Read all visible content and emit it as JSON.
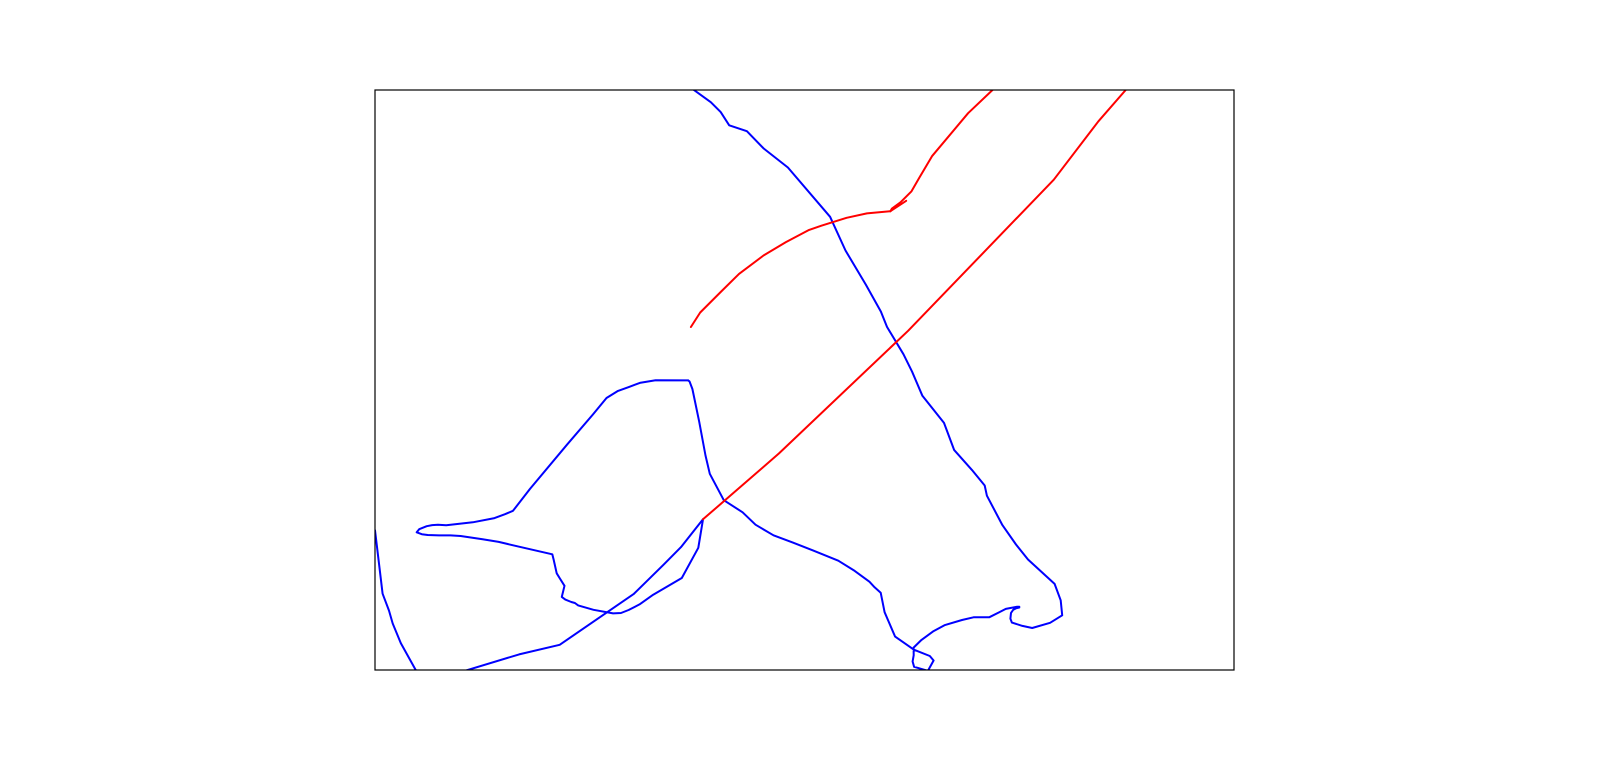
{
  "chart_data": {
    "type": "line",
    "title": "",
    "xlabel": "",
    "ylabel": "",
    "xlim": [
      0,
      1000
    ],
    "ylim": [
      0,
      1000
    ],
    "grid": false,
    "legend": "none",
    "ticks_visible": false,
    "series": [
      {
        "color": "#0000ff",
        "segments": [
          {
            "x": [
              368.9,
              390.9,
              402.5,
              412.3,
              432.9,
              452.5,
              480.7,
              529.8,
              547.7,
              571.5,
              588.9,
              596.1,
              615.2,
              625.3,
              637.3,
              662.4,
              674.2,
              694.9,
              709.8,
              712.3,
              730.4,
              746.2,
              760.2,
              791.1,
              798.2,
              800.0,
              785.9,
              765.1,
              753.7,
              741.5,
              739.7,
              740.4,
              743.1,
              746.2,
              750.0,
              750.0,
              747.5,
              734.3,
              727.0,
              715.2,
              696.7,
              683.3,
              663.0,
              650.3,
              636.2,
              627.0,
              627.1,
              625.8,
              627.6,
              643.6,
              650.3,
              645.9,
              627.3,
              605.5,
              593.3,
              588.7,
              581.6,
              575.6,
              558.4,
              539.4,
              510.2,
              486.9,
              463.9,
              443.0,
              427.9,
              406.0,
              389.8,
              384.8,
              377.4,
              369.5,
              366.1,
              364.6
            ],
            "y": [
              1002.6,
              978.9,
              961.9,
              939.1,
              929.0,
              899.1,
              866.4,
              781.4,
              723.3,
              664.2,
              617.9,
              591.6,
              544.3,
              514.3,
              472.8,
              426.1,
              379.5,
              345.0,
              318.1,
              300.6,
              249.8,
              216.3,
              190.6,
              148.5,
              120.2,
              94.3,
              81.3,
              72.5,
              76.1,
              81.8,
              88.4,
              98.5,
              104.0,
              106.4,
              107.7,
              108.9,
              109.1,
              105.4,
              99.9,
              91.1,
              90.8,
              86.2,
              77.3,
              67.1,
              51.9,
              38.7,
              25.6,
              14.7,
              5.5,
              -1.3,
              16.3,
              24.1,
              35.0,
              57.6,
              99.7,
              133.2,
              142.6,
              152.2,
              170.9,
              188.5,
              205.8,
              219.5,
              232.2,
              250.5,
              271.9,
              292.8,
              338.2,
              369.9,
              428.1,
              484.5,
              497.5,
              499.3
            ]
          },
          {
            "x": [
              364.6,
              326.7,
              309.1,
              295.8,
              282.9,
              269.5,
              253.7,
              223.9,
              180.5,
              160.6,
              151.3,
              139.1,
              113.8,
              82.9,
              73.3,
              66.6,
              60.2,
              51.5,
              48.6,
              54.5,
              61.3,
              74.5,
              87.9,
              99.6,
              125.3,
              144.0,
              165.2,
              206.4,
              208.0,
              211.5,
              215.3,
              220.6,
              217.5,
              221.5,
              228.5,
              232.7,
              236.6,
              254.4,
              277.2,
              286.4,
              295.2,
              307.9,
              323.9,
              357.2,
              376.4,
              381.8
            ],
            "y": [
              499.3,
              499.4,
              495.4,
              488.1,
              481.2,
              469.0,
              440.6,
              389.1,
              312.3,
              274.4,
              268.6,
              261.9,
              254.6,
              249.5,
              250.3,
              249.8,
              248.0,
              242.8,
              237.4,
              234.1,
              232.8,
              232.0,
              232.0,
              231.1,
              225.4,
              220.8,
              213.4,
              199.4,
              189.9,
              166.7,
              157.7,
              145.2,
              126.1,
              121.4,
              117.3,
              115.6,
              111.3,
              103.8,
              97.6,
              98.2,
              103.4,
              113.1,
              129.8,
              158.7,
              210.7,
              259.8
            ]
          },
          {
            "x": [
              381.8,
              356.1,
              336.1,
              301.0,
              215.0,
              167.7,
              69.0,
              47.4,
              30.0,
              20.6,
              16.3,
              8.9,
              0.0
            ],
            "y": [
              259.8,
              211.8,
              181.8,
              130.8,
              43.5,
              26.9,
              -17.4,
              0.0,
              46.4,
              80.1,
              102.4,
              131.6,
              241.1
            ]
          }
        ]
      },
      {
        "color": "#ff0000",
        "segments": [
          {
            "x": [
              381.8,
              470.3,
              620.6,
              790.2,
              842.1,
              873.9
            ],
            "y": [
              259.8,
              373.4,
              584.8,
              845.4,
              946.0,
              1000.0
            ]
          },
          {
            "x": [
              718.9,
              690.4,
              648.4,
              633.3,
              624.6,
              611.7,
              601.6,
              600.0
            ],
            "y": [
              1000.0,
              960.0,
              885.9,
              848.0,
              825.4,
              806.4,
              795.4,
              791.1
            ]
          },
          {
            "x": [
              600.0,
              572.7,
              549.0,
              519.7,
              504.5,
              478.3,
              452.3,
              423.8,
              403.0,
              378.6,
              367.8
            ],
            "y": [
              791.1,
              787.3,
              779.6,
              766.0,
              758.3,
              737.7,
              714.6,
              682.9,
              652.6,
              616.4,
              591.3
            ]
          },
          {
            "x": [
              600.0,
              618.4
            ],
            "y": [
              791.1,
              809.0
            ]
          }
        ]
      }
    ]
  }
}
